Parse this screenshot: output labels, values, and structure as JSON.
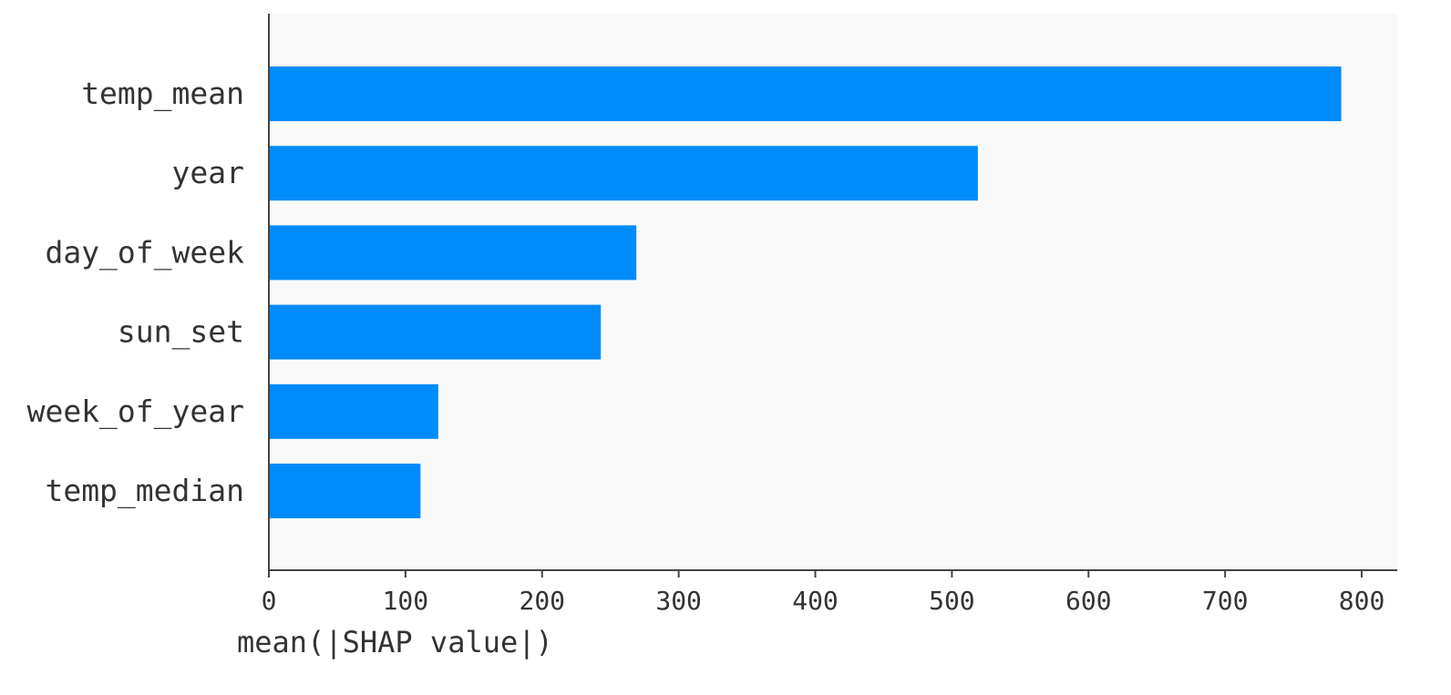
{
  "chart_data": {
    "type": "bar",
    "orientation": "horizontal",
    "categories": [
      "temp_mean",
      "year",
      "day_of_week",
      "sun_set",
      "week_of_year",
      "temp_median"
    ],
    "values": [
      785,
      519,
      269,
      243,
      124,
      111
    ],
    "xlabel": "mean(|SHAP value|)",
    "ylabel": "",
    "xlim": [
      0,
      826
    ],
    "xticks": [
      0,
      100,
      200,
      300,
      400,
      500,
      600,
      700,
      800
    ],
    "xtick_labels": [
      "0",
      "100",
      "200",
      "300",
      "400",
      "500",
      "600",
      "700",
      "800"
    ],
    "grid": false,
    "legend": "none",
    "colors": {
      "bar": "#008bfb",
      "plot_background": "#f9f9fa",
      "axis": "#444444",
      "text": "#333333"
    }
  }
}
